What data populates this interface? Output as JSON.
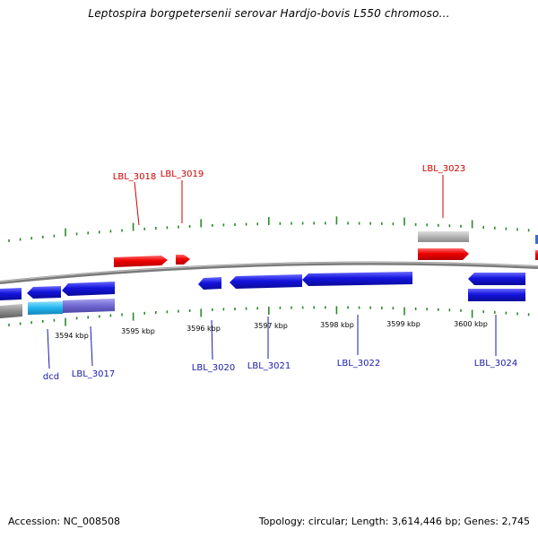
{
  "title": "Leptospira borgpetersenii serovar Hardjo-bovis L550 chromoso...",
  "footer": {
    "accession": "Accession: NC_008508",
    "summary": "Topology: circular; Length: 3,614,446 bp; Genes: 2,745"
  },
  "colors": {
    "backbone": "#8c8c8c",
    "forward_gene": "#ee0000",
    "forward_label": "#cc0000",
    "reverse_gene": "#1414dd",
    "reverse_label": "#1a1aaa",
    "tick": "#2a8a2a",
    "light_blue_gene": "#22b4ee",
    "purple_gene": "#7068d0",
    "grey_gene": "#b4b4b4"
  },
  "kbp_labels": [
    "3594 kbp",
    "3595 kbp",
    "3596 kbp",
    "3597 kbp",
    "3598 kbp",
    "3599 kbp",
    "3600 kbp"
  ],
  "forward_gene_labels": [
    "LBL_3018",
    "LBL_3019",
    "LBL_3023"
  ],
  "reverse_gene_labels": [
    "dcd",
    "LBL_3017",
    "LBL_3020",
    "LBL_3021",
    "LBL_3022",
    "LBL_3024"
  ]
}
